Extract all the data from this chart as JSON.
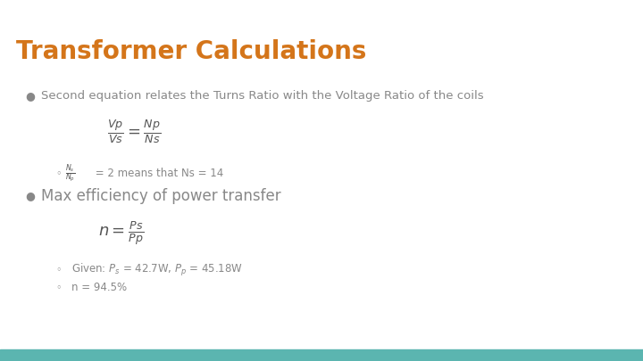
{
  "title": "Transformer Calculations",
  "title_color": "#D4751A",
  "title_font": "bold",
  "title_size": 20,
  "background_color": "#FFFFFF",
  "bottom_bar_color": "#5BB5B0",
  "bullet1_text": "Second equation relates the Turns Ratio with the Voltage Ratio of the coils",
  "bullet2_text": "Max efficiency of power transfer",
  "sub1_text": " = 2 means that Ns = 14",
  "sub3_text": "n = 94.5%",
  "text_color": "#888888",
  "formula_color": "#555555",
  "subbullet_given": "Given: $P_s$ = 42.7W, $P_p$ = 45.18W"
}
